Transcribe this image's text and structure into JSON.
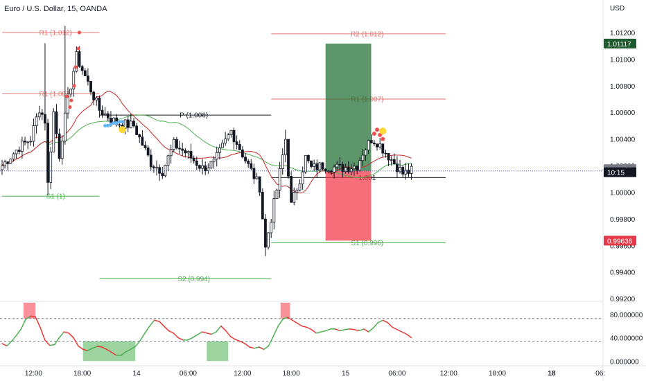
{
  "header": {
    "symbol": "Euro / U.S. Dollar, 15, OANDA",
    "currency": "USD"
  },
  "chart_data": {
    "type": "candlestick",
    "price_axis": {
      "ticks": [
        1.012,
        1.01,
        1.008,
        1.006,
        1.004,
        1.002,
        1.0,
        0.998,
        0.996,
        0.994,
        0.992
      ],
      "tick_labels": [
        "1.01200",
        "1.01000",
        "1.00800",
        "1.00600",
        "1.00400",
        "1.00200",
        "1.00000",
        "0.99800",
        "0.99600",
        "0.99400",
        "0.99200"
      ],
      "range": [
        0.9918,
        1.0133
      ]
    },
    "time_axis": {
      "ticks": [
        {
          "label": "12:00",
          "bold": false
        },
        {
          "label": "18:00",
          "bold": false
        },
        {
          "label": "14",
          "bold": false
        },
        {
          "label": "06:00",
          "bold": false
        },
        {
          "label": "12:00",
          "bold": false
        },
        {
          "label": "18:00",
          "bold": false
        },
        {
          "label": "15",
          "bold": false
        },
        {
          "label": "06:00",
          "bold": false
        },
        {
          "label": "12:00",
          "bold": false
        },
        {
          "label": "18:00",
          "bold": false
        },
        {
          "label": "18",
          "bold": true
        },
        {
          "label": "06:",
          " bold": false
        }
      ]
    },
    "price_badges": [
      {
        "label": "1.01117",
        "value": 1.01117,
        "color": "#1e5a2e"
      },
      {
        "label": "1.00173",
        "value": 1.00173,
        "color": "#787b86"
      },
      {
        "label": "10:15",
        "value": 1.0015,
        "color": "#131722"
      },
      {
        "label": "0.99636",
        "value": 0.99636,
        "color": "#e53948"
      }
    ],
    "current_price": 1.0016,
    "pivot_levels": [
      {
        "label": "R1 (1.012)",
        "value": 1.012,
        "t0": 0,
        "t1": 34,
        "color": "#e57373"
      },
      {
        "label": "R1 (1.007)",
        "value": 1.0074,
        "t0": 0,
        "t1": 34,
        "color": "#e57373"
      },
      {
        "label": "P (1.006)",
        "value": 1.0058,
        "t0": 34,
        "t1": 94,
        "color": "#131722"
      },
      {
        "label": "S1 (1)",
        "value": 0.9997,
        "t0": 0,
        "t1": 34,
        "color": "#4caf50"
      },
      {
        "label": "S2 (0.994)",
        "value": 0.9935,
        "t0": 34,
        "t1": 94,
        "color": "#4caf50"
      },
      {
        "label": "R2 (1.012)",
        "value": 1.0119,
        "t0": 94,
        "t1": 155,
        "color": "#e57373"
      },
      {
        "label": "R1 (1.007)",
        "value": 1.007,
        "t0": 94,
        "t1": 155,
        "color": "#e57373"
      },
      {
        "label": "1.001",
        "value": 1.0011,
        "t0": 94,
        "t1": 155,
        "color": "#131722"
      },
      {
        "label": "S1 (0.996)",
        "value": 0.9962,
        "t0": 94,
        "t1": 155,
        "color": "#4caf50"
      }
    ],
    "position": {
      "entry": 1.0016,
      "target": 1.01117,
      "stop": 0.99636,
      "t0": 113,
      "t1": 127
    },
    "candles": [],
    "oscillator": {
      "ticks": [
        80,
        40,
        0
      ],
      "tick_labels": [
        "80.000000",
        "40.000000",
        "0.000000"
      ],
      "upper": 73,
      "lower": 34,
      "range": [
        -8,
        100
      ],
      "values": [
        30,
        26,
        34,
        44,
        55,
        72,
        77,
        76,
        58,
        36,
        27,
        28,
        40,
        50,
        48,
        40,
        26,
        20,
        18,
        22,
        25,
        24,
        20,
        15,
        10,
        10,
        16,
        20,
        25,
        35,
        48,
        60,
        70,
        68,
        60,
        52,
        48,
        40,
        36,
        36,
        40,
        45,
        50,
        48,
        46,
        50,
        60,
        52,
        42,
        37,
        34,
        30,
        24,
        22,
        24,
        20,
        26,
        43,
        60,
        72,
        75,
        70,
        65,
        60,
        58,
        54,
        48,
        50,
        52,
        55,
        55,
        52,
        54,
        55,
        54,
        52,
        55,
        50,
        57,
        66,
        70,
        66,
        58,
        54,
        50,
        46,
        40
      ]
    }
  }
}
